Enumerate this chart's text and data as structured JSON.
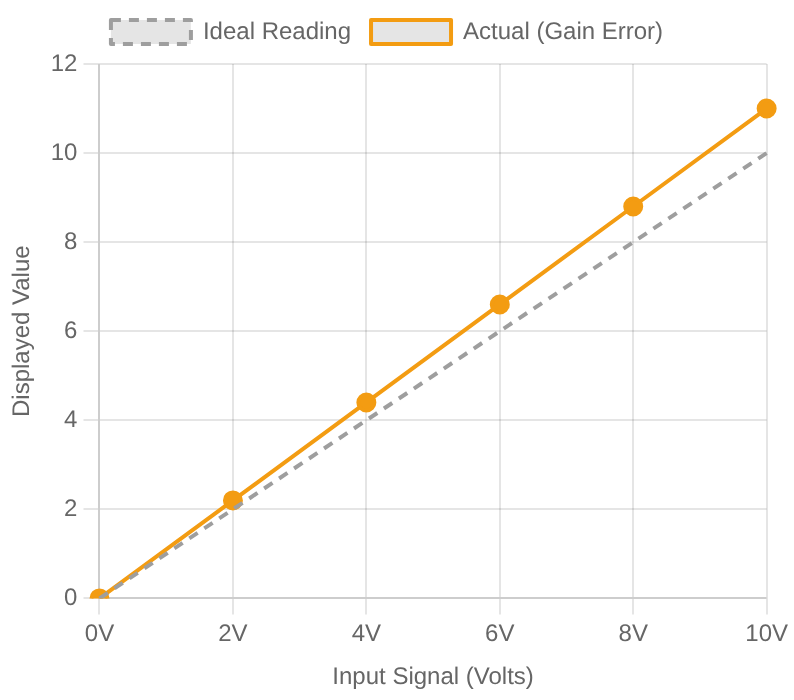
{
  "chart_data": {
    "type": "line",
    "xlabel": "Input Signal (Volts)",
    "ylabel": "Displayed Value",
    "categories": [
      "0V",
      "2V",
      "4V",
      "6V",
      "8V",
      "10V"
    ],
    "series": [
      {
        "name": "Ideal Reading",
        "color": "#9e9e9e",
        "values": [
          0,
          2,
          4,
          6,
          8,
          10
        ],
        "line_style": "dashed",
        "marker": "none"
      },
      {
        "name": "Actual (Gain Error)",
        "color": "#f39c12",
        "values": [
          0,
          2.2,
          4.4,
          6.6,
          8.8,
          11
        ],
        "line_style": "solid",
        "marker": "circle"
      }
    ],
    "ylim": [
      0,
      12
    ],
    "yticks": [
      0,
      2,
      4,
      6,
      8,
      10,
      12
    ],
    "grid": true,
    "legend": "top"
  }
}
